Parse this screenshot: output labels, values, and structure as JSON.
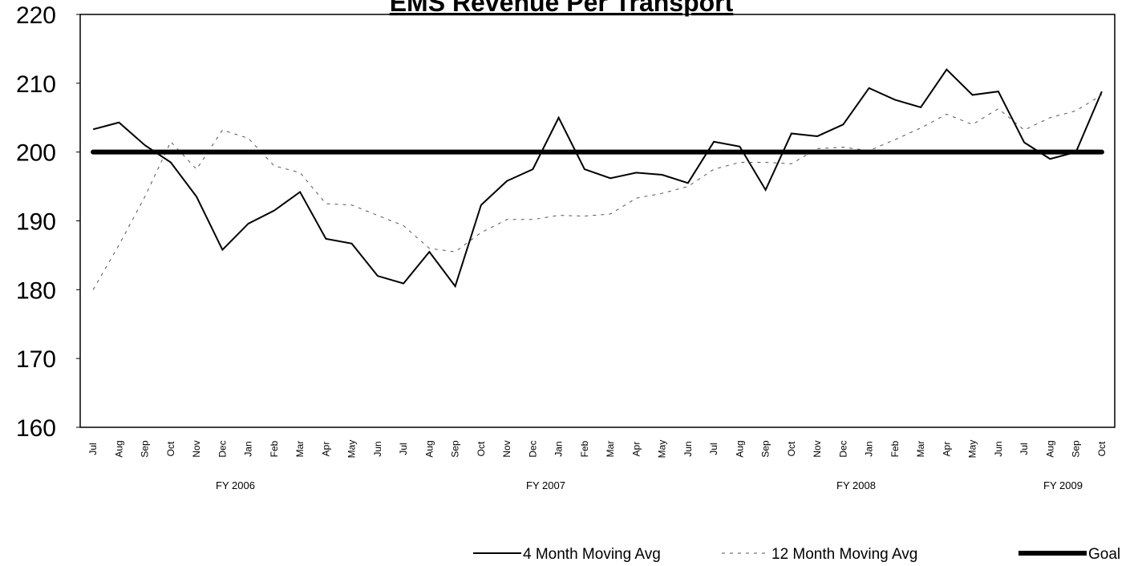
{
  "chart_data": {
    "type": "line",
    "title": "EMS Revenue Per Transport",
    "categories": [
      "Jul",
      "Aug",
      "Sep",
      "Oct",
      "Nov",
      "Dec",
      "Jan",
      "Feb",
      "Mar",
      "Apr",
      "May",
      "Jun",
      "Jul",
      "Aug",
      "Sep",
      "Oct",
      "Nov",
      "Dec",
      "Jan",
      "Feb",
      "Mar",
      "Apr",
      "May",
      "Jun",
      "Jul",
      "Aug",
      "Sep",
      "Oct",
      "Nov",
      "Dec",
      "Jan",
      "Feb",
      "Mar",
      "Apr",
      "May",
      "Jun",
      "Jul",
      "Aug",
      "Sep",
      "Oct"
    ],
    "groups": [
      {
        "label": "FY 2006",
        "count": 12
      },
      {
        "label": "FY 2007",
        "count": 12
      },
      {
        "label": "FY 2008",
        "count": 12
      },
      {
        "label": "FY 2009",
        "count": 4
      }
    ],
    "series": [
      {
        "name": "4 Month Moving Avg",
        "color": "#000000",
        "style": "solid",
        "width": 2,
        "values": [
          203.3,
          204.3,
          201,
          198.5,
          193.5,
          185.8,
          189.6,
          191.5,
          194.2,
          187.4,
          186.7,
          182,
          180.9,
          185.5,
          180.5,
          192.3,
          195.8,
          197.5,
          205,
          197.5,
          196.2,
          197,
          196.7,
          195.5,
          201.5,
          200.8,
          194.5,
          202.7,
          202.3,
          204,
          209.3,
          207.6,
          206.5,
          212,
          208.3,
          208.8,
          201.4,
          199,
          200,
          208.8
        ]
      },
      {
        "name": "12 Month Moving Avg",
        "color": "#555555",
        "style": "dashed",
        "width": 1,
        "values": [
          180,
          186.5,
          193.5,
          201.5,
          197.5,
          203.2,
          202,
          198,
          197,
          192.5,
          192.3,
          190.8,
          189.3,
          186,
          185.5,
          188.3,
          190.2,
          190.2,
          190.8,
          190.7,
          191,
          193.3,
          194,
          195,
          197.5,
          198.5,
          198.5,
          198.3,
          200.5,
          200.7,
          200.2,
          201.8,
          203.5,
          205.5,
          204,
          206.3,
          203.2,
          205,
          206,
          208.3
        ]
      },
      {
        "name": "Goal",
        "color": "#000000",
        "style": "solid",
        "width": 6,
        "values": [
          200,
          200,
          200,
          200,
          200,
          200,
          200,
          200,
          200,
          200,
          200,
          200,
          200,
          200,
          200,
          200,
          200,
          200,
          200,
          200,
          200,
          200,
          200,
          200,
          200,
          200,
          200,
          200,
          200,
          200,
          200,
          200,
          200,
          200,
          200,
          200,
          200,
          200,
          200,
          200
        ]
      }
    ],
    "ylim": [
      160,
      220
    ],
    "yticks": [
      160,
      170,
      180,
      190,
      200,
      210,
      220
    ],
    "legend": "bottom-right"
  }
}
